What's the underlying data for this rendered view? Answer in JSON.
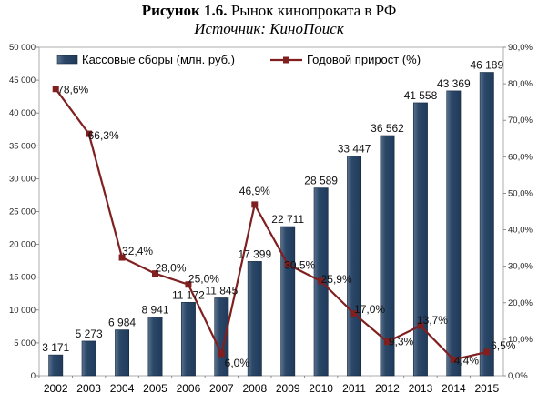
{
  "figure": {
    "title_bold": "Рисунок 1.6.",
    "title_rest": " Рынок кинопроката в РФ",
    "subtitle": "Источник: КиноПоиск"
  },
  "chart_data": {
    "type": "bar",
    "categories": [
      "2002",
      "2003",
      "2004",
      "2005",
      "2006",
      "2007",
      "2008",
      "2009",
      "2010",
      "2011",
      "2012",
      "2013",
      "2014",
      "2015"
    ],
    "series": [
      {
        "name": "Кассовые сборы (млн. руб.)",
        "type": "bar",
        "axis": "left",
        "values": [
          3171,
          5273,
          6984,
          8941,
          11172,
          11845,
          17399,
          22711,
          28589,
          33447,
          36562,
          41558,
          43369,
          46189
        ],
        "labels": [
          "3 171",
          "5 273",
          "6 984",
          "8 941",
          "11 172",
          "11 845",
          "17 399",
          "22 711",
          "28 589",
          "33 447",
          "36 562",
          "41 558",
          "43 369",
          "46 189"
        ],
        "color": "#1f3a5a"
      },
      {
        "name": "Годовой прирост (%)",
        "type": "line",
        "axis": "right",
        "values": [
          78.6,
          66.3,
          32.4,
          28.0,
          25.0,
          6.0,
          46.9,
          30.5,
          25.9,
          17.0,
          9.3,
          13.7,
          4.4,
          6.5
        ],
        "labels": [
          "78,6%",
          "66,3%",
          "32,4%",
          "28,0%",
          "25,0%",
          "6,0%",
          "46,9%",
          "30,5%",
          "25,9%",
          "17,0%",
          "9,3%",
          "13,7%",
          "4,4%",
          "6,5%"
        ],
        "color": "#7f1f1f"
      }
    ],
    "y_left": {
      "range": [
        0,
        50000
      ],
      "ticks": [
        "0",
        "5 000",
        "10 000",
        "15 000",
        "20 000",
        "25 000",
        "30 000",
        "35 000",
        "40 000",
        "45 000",
        "50 000"
      ]
    },
    "y_right": {
      "range": [
        0,
        90
      ],
      "ticks": [
        "0,0%",
        "10,0%",
        "20,0%",
        "30,0%",
        "40,0%",
        "50,0%",
        "60,0%",
        "70,0%",
        "80,0%",
        "90,0%"
      ]
    },
    "legend": "top",
    "grid": false
  }
}
